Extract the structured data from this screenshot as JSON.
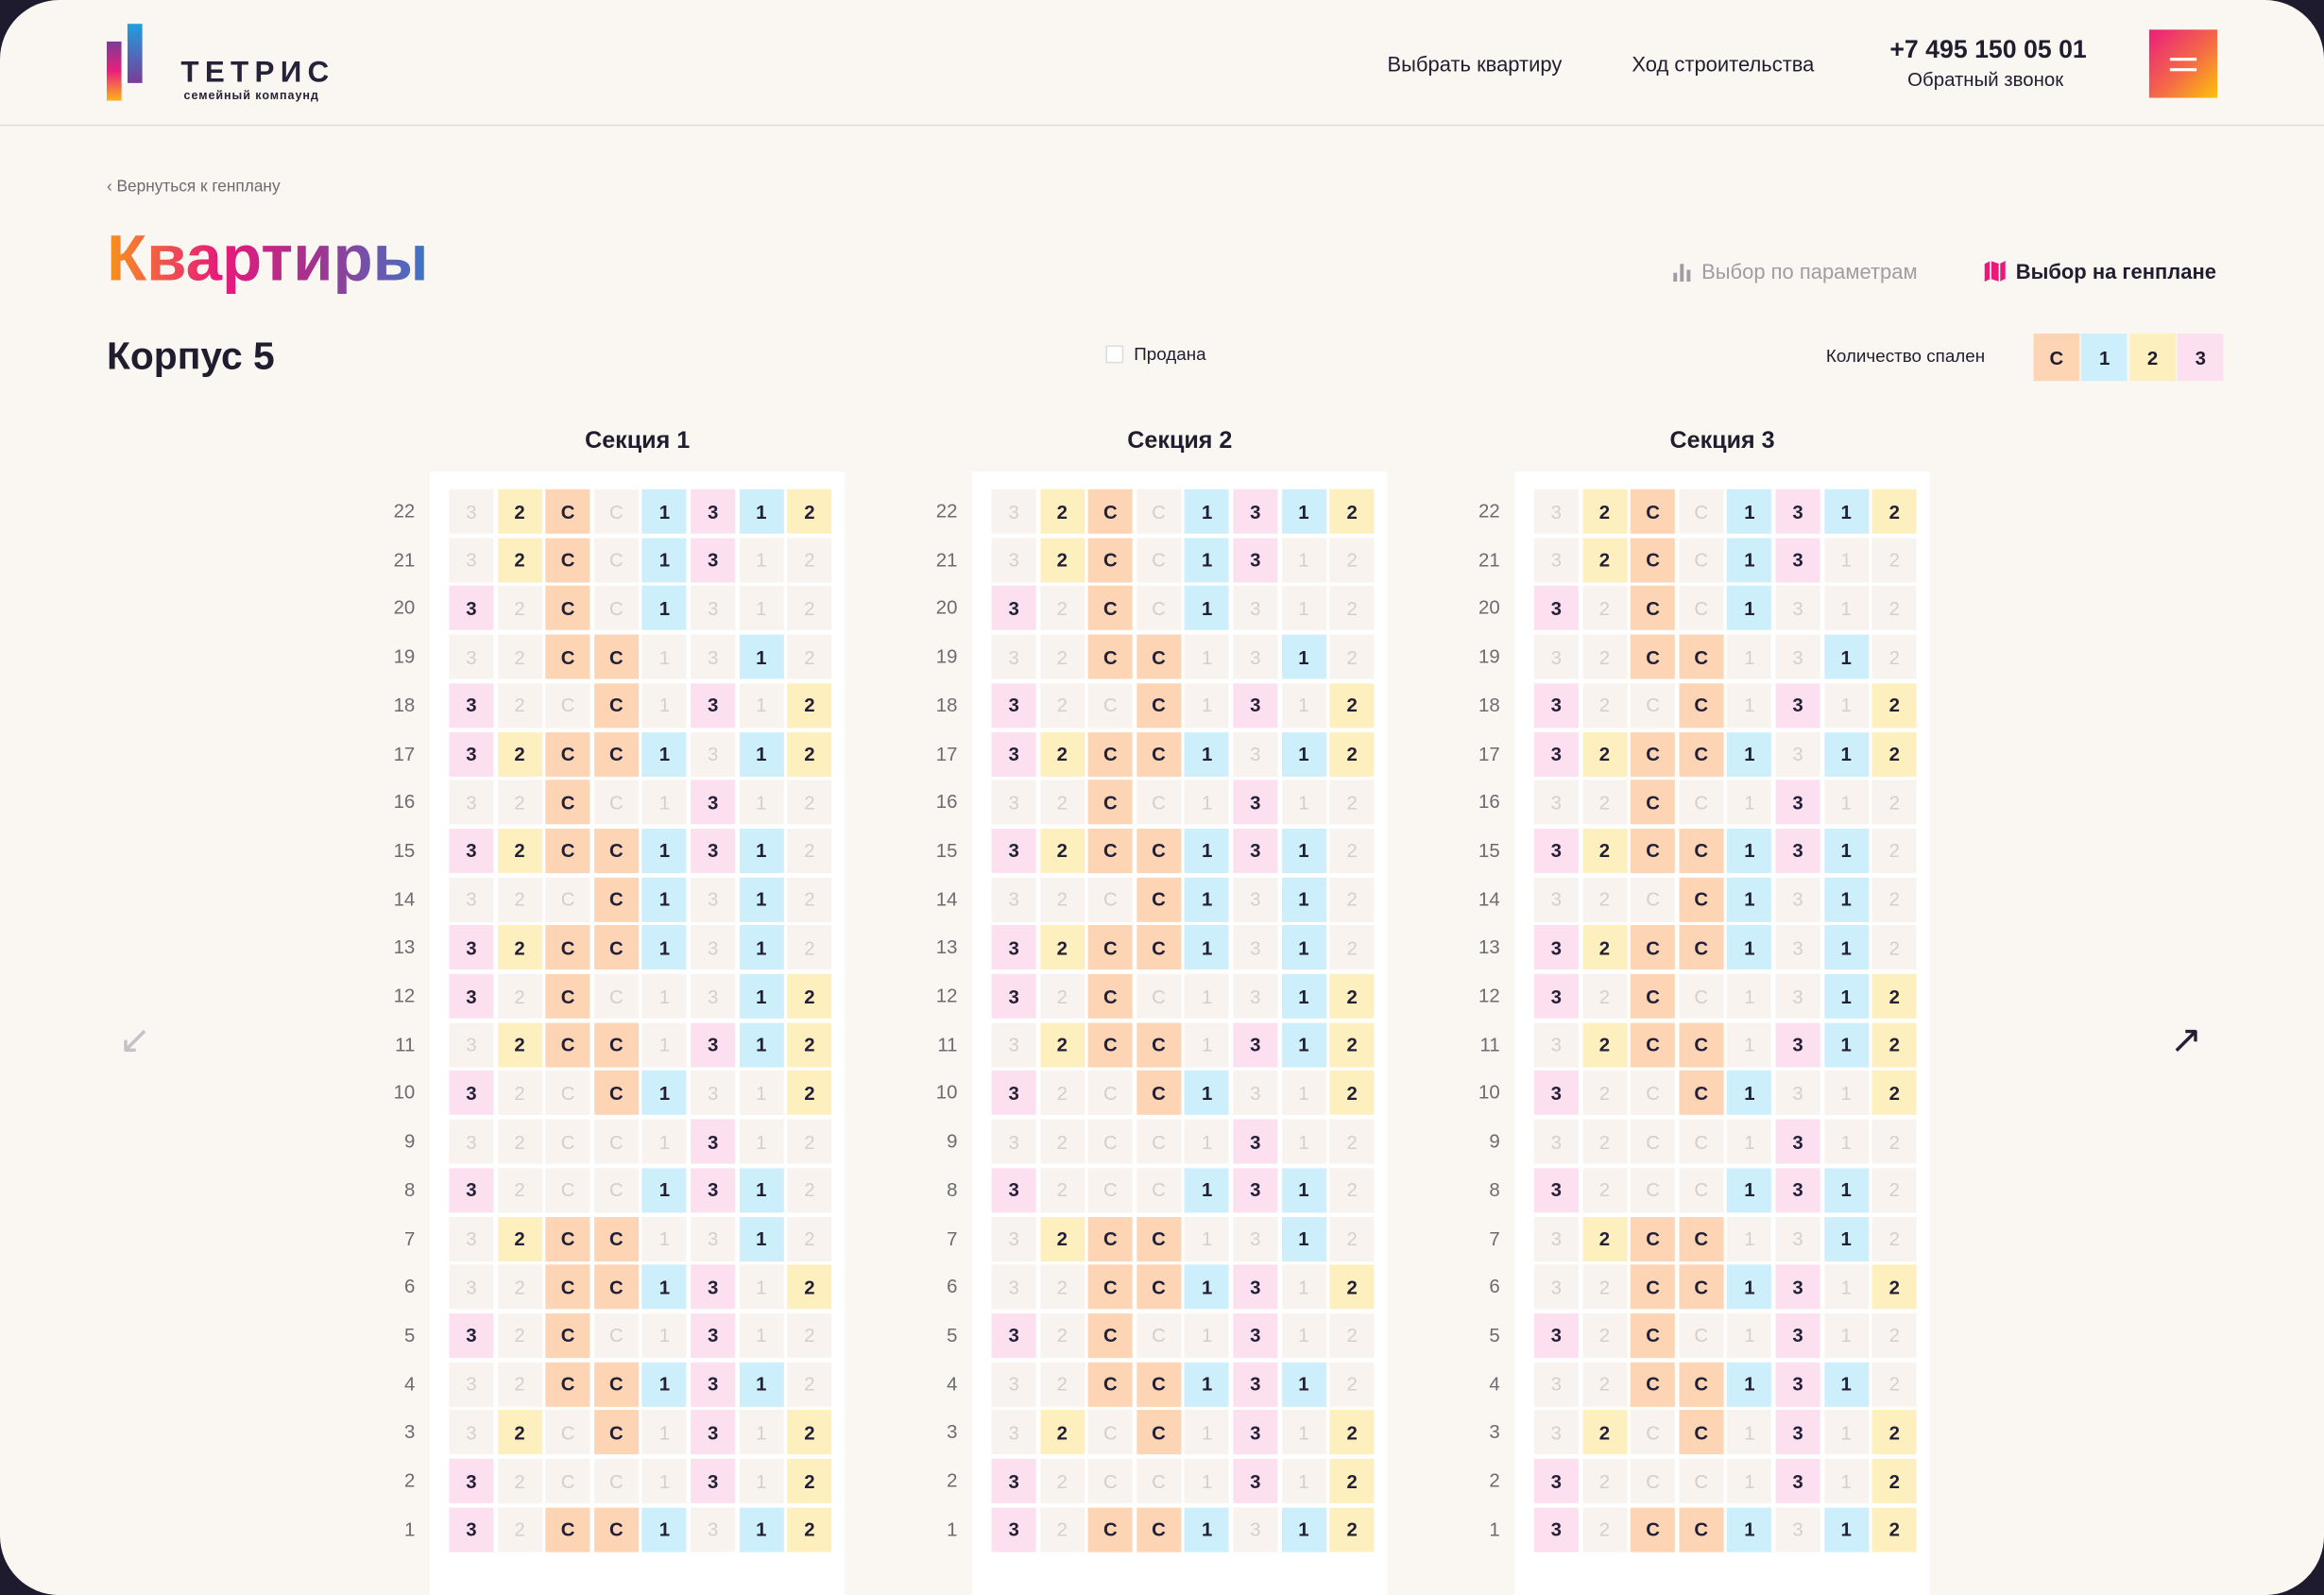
{
  "header": {
    "logo_title": "ТЕТРИС",
    "logo_subtitle": "семейный компаунд",
    "nav": [
      "Выбрать квартиру",
      "Ход строительства"
    ],
    "phone": "+7 495 150 05 01",
    "callback": "Обратный звонок",
    "menu_icon": "hamburger-icon"
  },
  "breadcrumb": "‹ Вернуться к генплану",
  "page_title": "Квартиры",
  "view_links": {
    "params": "Выбор по параметрам",
    "map": "Выбор на генплане"
  },
  "building": "Корпус 5",
  "sold_label": "Продана",
  "legend": {
    "label": "Количество спален",
    "items": [
      {
        "label": "С",
        "color": "#fdd5b4"
      },
      {
        "label": "1",
        "color": "#cdeffc"
      },
      {
        "label": "2",
        "color": "#fef0be"
      },
      {
        "label": "3",
        "color": "#fde0ef"
      }
    ]
  },
  "colors": {
    "С": "#fdd5b4",
    "1": "#cdeffc",
    "2": "#fef0be",
    "3": "#fde0ef",
    "sold": "#f8f3ef"
  },
  "columns": [
    "3",
    "2",
    "С",
    "С",
    "1",
    "3",
    "1",
    "2"
  ],
  "sections": [
    {
      "title": "Секция 1"
    },
    {
      "title": "Секция 2"
    },
    {
      "title": "Секция 3"
    }
  ],
  "floors": [
    {
      "n": "22",
      "avail": "01101111"
    },
    {
      "n": "21",
      "avail": "01101100"
    },
    {
      "n": "20",
      "avail": "10101000"
    },
    {
      "n": "19",
      "avail": "00110010"
    },
    {
      "n": "18",
      "avail": "10010101"
    },
    {
      "n": "17",
      "avail": "11111011"
    },
    {
      "n": "16",
      "avail": "00100100"
    },
    {
      "n": "15",
      "avail": "11111110"
    },
    {
      "n": "14",
      "avail": "00011010"
    },
    {
      "n": "13",
      "avail": "11111010"
    },
    {
      "n": "12",
      "avail": "10100011"
    },
    {
      "n": "11",
      "avail": "01110111"
    },
    {
      "n": "10",
      "avail": "10011001"
    },
    {
      "n": "9",
      "avail": "00000100"
    },
    {
      "n": "8",
      "avail": "10001110"
    },
    {
      "n": "7",
      "avail": "01110010"
    },
    {
      "n": "6",
      "avail": "00111101"
    },
    {
      "n": "5",
      "avail": "10100100"
    },
    {
      "n": "4",
      "avail": "00111110"
    },
    {
      "n": "3",
      "avail": "01010101"
    },
    {
      "n": "2",
      "avail": "10000101"
    },
    {
      "n": "1",
      "avail": "10111011"
    }
  ],
  "arrows": {
    "prev": "↙",
    "next": "↗"
  }
}
